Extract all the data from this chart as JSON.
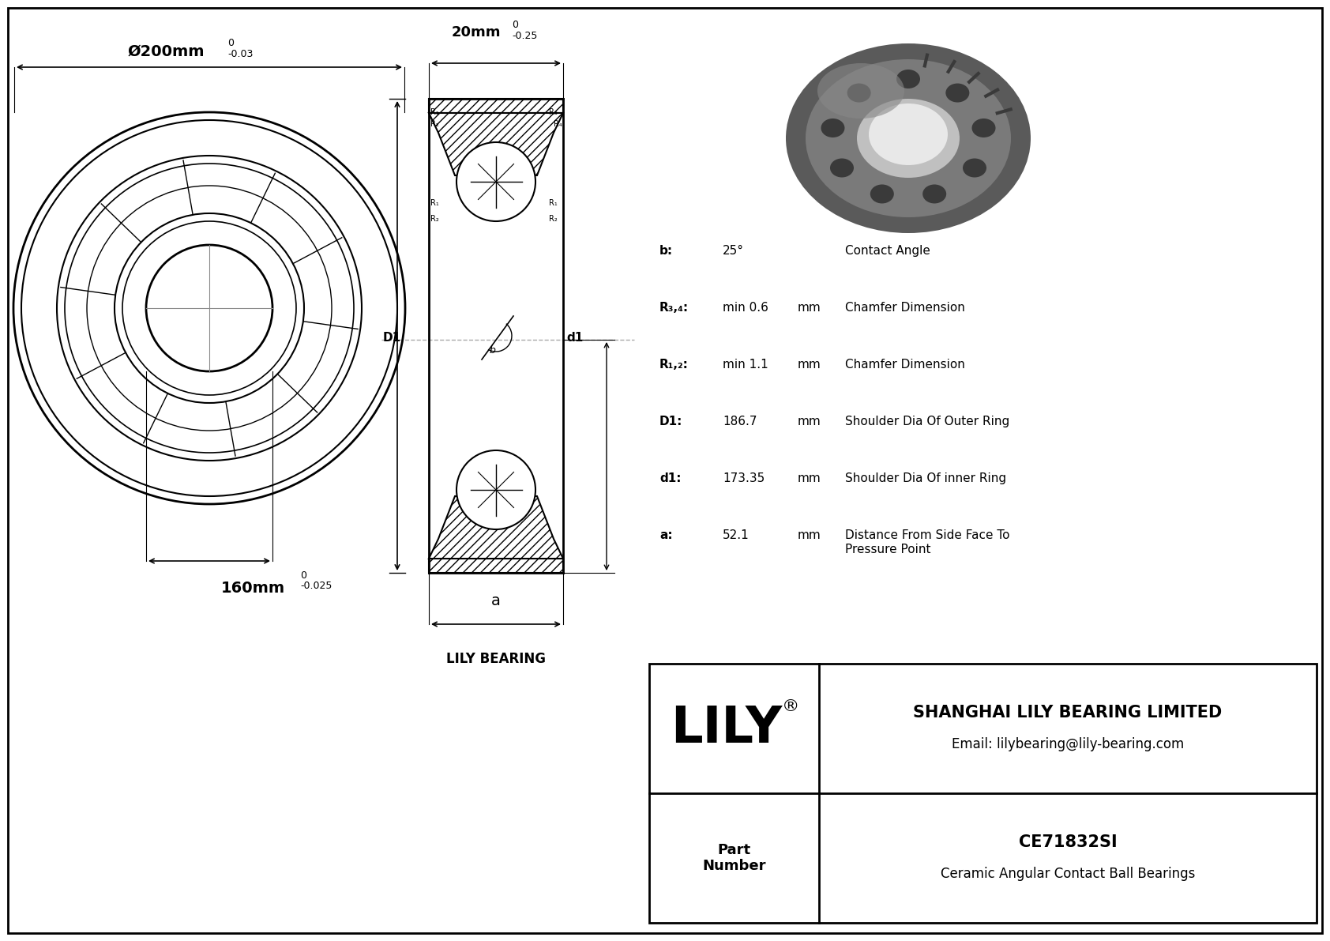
{
  "bg_color": "#ffffff",
  "line_color": "#000000",
  "company": "SHANGHAI LILY BEARING LIMITED",
  "email": "Email: lilybearing@lily-bearing.com",
  "part_number": "CE71832SI",
  "part_type": "Ceramic Angular Contact Ball Bearings",
  "lily_text": "LILY",
  "lily_bearing_label": "LILY BEARING",
  "outer_dim_label": "Ø200mm",
  "outer_dim_tol_upper": "0",
  "outer_dim_tol_lower": "-0.03",
  "inner_dim_label": "160mm",
  "inner_dim_tol_upper": "0",
  "inner_dim_tol_lower": "-0.025",
  "width_dim_label": "20mm",
  "width_dim_tol_upper": "0",
  "width_dim_tol_lower": "-0.25",
  "specs": [
    {
      "key": "b:",
      "value": "25°",
      "unit": "",
      "desc": "Contact Angle"
    },
    {
      "key": "R₃,₄:",
      "value": "min 0.6",
      "unit": "mm",
      "desc": "Chamfer Dimension"
    },
    {
      "key": "R₁,₂:",
      "value": "min 1.1",
      "unit": "mm",
      "desc": "Chamfer Dimension"
    },
    {
      "key": "D1:",
      "value": "186.7",
      "unit": "mm",
      "desc": "Shoulder Dia Of Outer Ring"
    },
    {
      "key": "d1:",
      "value": "173.35",
      "unit": "mm",
      "desc": "Shoulder Dia Of inner Ring"
    },
    {
      "key": "a:",
      "value": "52.1",
      "unit": "mm",
      "desc": "Distance From Side Face To\nPressure Point"
    }
  ]
}
